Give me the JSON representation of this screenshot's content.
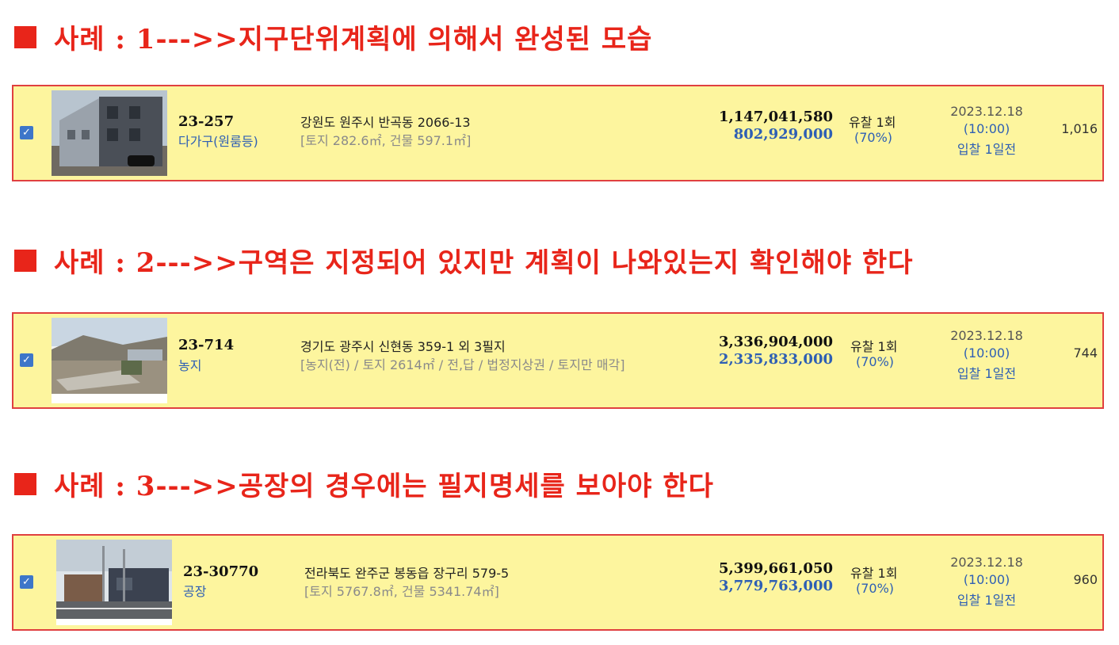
{
  "cases": [
    {
      "heading": "사례 : 1--->>지구단위계획에 의해서 완성된 모습",
      "case_no": "23-257",
      "property_type": "다가구(원룸등)",
      "address": "강원도 원주시 반곡동 2066-13",
      "detail": "[토지 282.6㎡, 건물 597.1㎡]",
      "appraisal_price": "1,147,041,580",
      "minimum_price": "802,929,000",
      "fail_count": "유찰 1회",
      "rate": "(70%)",
      "date": "2023.12.18",
      "time": "(10:00)",
      "dday": "입찰 1일전",
      "views": "1,016"
    },
    {
      "heading": "사례 : 2--->>구역은 지정되어 있지만 계획이 나와있는지 확인해야 한다",
      "case_no": "23-714",
      "property_type": "농지",
      "address": "경기도 광주시 신현동 359-1 외 3필지",
      "detail": "[농지(전) / 토지 2614㎡ / 전,답 / 법정지상권 / 토지만 매각]",
      "appraisal_price": "3,336,904,000",
      "minimum_price": "2,335,833,000",
      "fail_count": "유찰 1회",
      "rate": "(70%)",
      "date": "2023.12.18",
      "time": "(10:00)",
      "dday": "입찰 1일전",
      "views": "744"
    },
    {
      "heading": "사례 : 3--->>공장의 경우에는 필지명세를 보아야 한다",
      "case_no": "23-30770",
      "property_type": "공장",
      "address": "전라북도 완주군 봉동읍 장구리 579-5",
      "detail": "[토지 5767.8㎡, 건물 5341.74㎡]",
      "appraisal_price": "5,399,661,050",
      "minimum_price": "3,779,763,000",
      "fail_count": "유찰 1회",
      "rate": "(70%)",
      "date": "2023.12.18",
      "time": "(10:00)",
      "dday": "입찰 1일전",
      "views": "960"
    }
  ],
  "checkbox_glyph": "✓",
  "colors": {
    "heading_red": "#e8251a",
    "card_fill": "#fdf59e",
    "card_border": "#e04040",
    "link_blue": "#2e5fb4"
  },
  "icons": [
    "checkbox-checked-icon"
  ]
}
